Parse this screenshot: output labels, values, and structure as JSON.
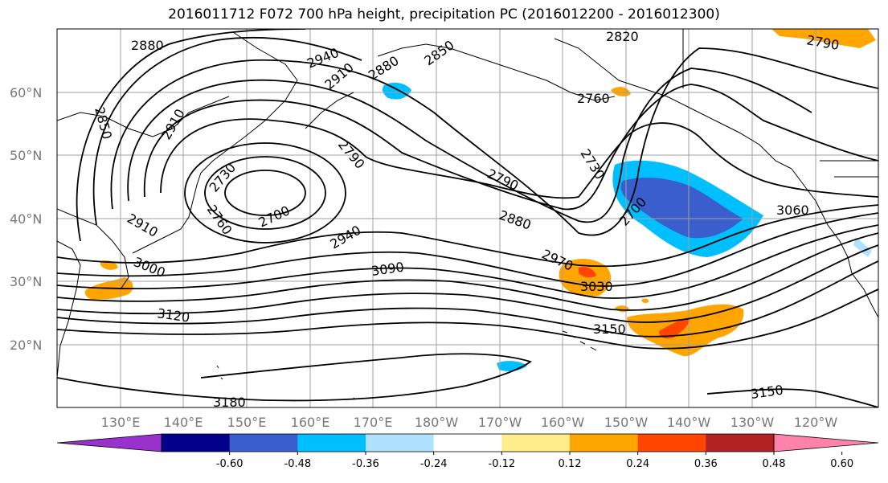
{
  "title": "2016011712 F072 700 hPa height, precipitation PC (2016012200 - 2016012300)",
  "lat_labels": [
    "60°N",
    "50°N",
    "40°N",
    "30°N",
    "20°N"
  ],
  "lon_labels": [
    "130°E",
    "140°E",
    "150°E",
    "160°E",
    "170°E",
    "180°W",
    "170°W",
    "160°W",
    "150°W",
    "140°W",
    "130°W",
    "120°W"
  ],
  "colorbar": {
    "colors": [
      "#9932cc",
      "#00008b",
      "#3a5fcd",
      "#00bfff",
      "#b0e2ff",
      "#ffffff",
      "#ffec8b",
      "#ffa500",
      "#ff4500",
      "#b22222",
      "#ff82ab"
    ],
    "tick_labels": [
      "-0.60",
      "-0.48",
      "-0.36",
      "-0.24",
      "-0.12",
      "0.12",
      "0.24",
      "0.36",
      "0.48",
      "0.60"
    ]
  },
  "contour_labels": [
    "2880",
    "2940",
    "2910",
    "2880",
    "2850",
    "2820",
    "2790",
    "2850",
    "2910",
    "2760",
    "2730",
    "2790",
    "2730",
    "2700",
    "2790",
    "2760",
    "2700",
    "2880",
    "3060",
    "2910",
    "2940",
    "2970",
    "3000",
    "3090",
    "3030",
    "3120",
    "3150",
    "3180",
    "3150"
  ]
}
